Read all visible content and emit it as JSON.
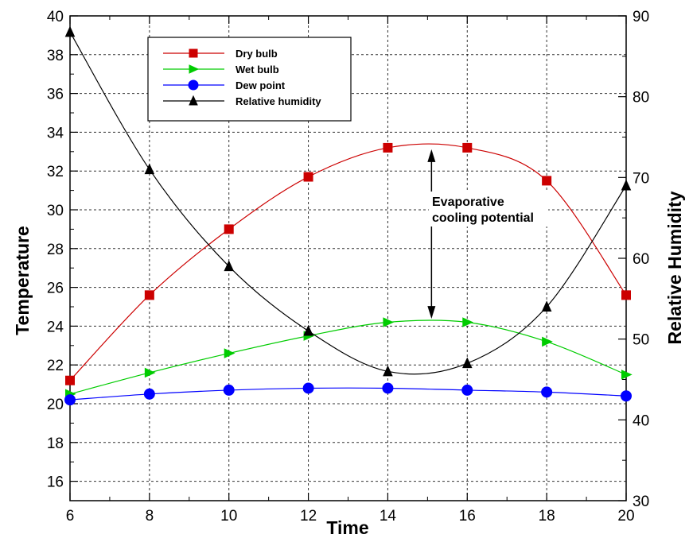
{
  "chart_data": {
    "type": "line",
    "xlabel": "Time",
    "ylabel": "Temperature",
    "y2label": "Relative Humidity",
    "xlim": [
      6,
      20
    ],
    "ylim": [
      15,
      40
    ],
    "y2lim": [
      30,
      90
    ],
    "x_ticks": [
      6,
      8,
      10,
      12,
      14,
      16,
      18,
      20
    ],
    "y_ticks": [
      16,
      18,
      20,
      22,
      24,
      26,
      28,
      30,
      32,
      34,
      36,
      38,
      40
    ],
    "y2_ticks": [
      30,
      40,
      50,
      60,
      70,
      80,
      90
    ],
    "grid": true,
    "legend_position": "top-left",
    "series": [
      {
        "name": "Dry bulb",
        "axis": "left",
        "color": "#cc0000",
        "marker": "square",
        "x": [
          6,
          8,
          10,
          12,
          14,
          16,
          18,
          20
        ],
        "values": [
          21.2,
          25.6,
          29.0,
          31.7,
          33.2,
          33.2,
          31.5,
          25.6
        ]
      },
      {
        "name": "Wet bulb",
        "axis": "left",
        "color": "#00cc00",
        "marker": "triangle-right",
        "x": [
          6,
          8,
          10,
          12,
          14,
          16,
          18,
          20
        ],
        "values": [
          20.5,
          21.6,
          22.6,
          23.5,
          24.2,
          24.2,
          23.2,
          21.5
        ]
      },
      {
        "name": "Dew point",
        "axis": "left",
        "color": "#0000ff",
        "marker": "circle",
        "x": [
          6,
          8,
          10,
          12,
          14,
          16,
          18,
          20
        ],
        "values": [
          20.2,
          20.5,
          20.7,
          20.8,
          20.8,
          20.7,
          20.6,
          20.4
        ]
      },
      {
        "name": "Relative humidity",
        "axis": "right",
        "color": "#000000",
        "marker": "triangle-up",
        "x": [
          6,
          8,
          10,
          12,
          14,
          16,
          18,
          20
        ],
        "values": [
          88,
          71,
          59,
          51,
          46,
          47,
          54,
          69
        ]
      }
    ],
    "annotations": [
      {
        "text": [
          "Evaporative",
          "cooling potential"
        ],
        "x": 15.1,
        "y_from": 33.2,
        "y_to": 24.3
      }
    ]
  }
}
